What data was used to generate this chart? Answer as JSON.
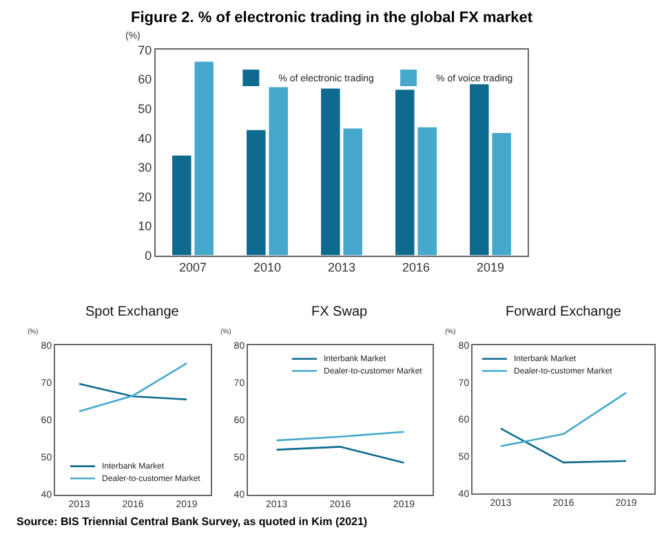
{
  "chart_data": [
    {
      "type": "bar",
      "title": "Figure 2. % of electronic trading in the global FX market",
      "ylabel": "(%)",
      "categories": [
        "2007",
        "2010",
        "2013",
        "2016",
        "2019"
      ],
      "series": [
        {
          "name": "% of electronic trading",
          "color": "#0e6a8e",
          "values": [
            34,
            42.7,
            56.8,
            56.4,
            58.3
          ]
        },
        {
          "name": "% of voice trading",
          "color": "#45a8cc",
          "values": [
            66,
            57.3,
            43.2,
            43.6,
            41.7
          ]
        }
      ],
      "ylim": [
        0,
        70
      ],
      "yticks": [
        0,
        10,
        20,
        30,
        40,
        50,
        60,
        70
      ],
      "grid": false,
      "legend": "top right",
      "annotations": [
        "Source: BIS Triennial Central Bank Survey, as quoted in Kim (2021)"
      ]
    },
    {
      "type": "line",
      "title": "Spot Exchange",
      "ylabel": "(%)",
      "categories": [
        "2013",
        "2016",
        "2019"
      ],
      "series": [
        {
          "name": "Interbank Market",
          "color": "#0e6a8e",
          "values": [
            69.7,
            66.3,
            65.5
          ]
        },
        {
          "name": "Dealer-to-customer Market",
          "color": "#45a8cc",
          "values": [
            62.3,
            66.5,
            75.2
          ]
        }
      ],
      "ylim": [
        40,
        80
      ],
      "yticks": [
        40,
        50,
        60,
        70,
        80
      ],
      "grid": false,
      "legend": "bottom right",
      "marker": "none",
      "line_style": "solid"
    },
    {
      "type": "line",
      "title": "FX Swap",
      "ylabel": "(%)",
      "categories": [
        "2013",
        "2016",
        "2019"
      ],
      "series": [
        {
          "name": "Interbank Market",
          "color": "#0e6a8e",
          "values": [
            52,
            52.8,
            48.5
          ]
        },
        {
          "name": "Dealer-to-customer Market",
          "color": "#45a8cc",
          "values": [
            54.5,
            55.5,
            56.8
          ]
        }
      ],
      "ylim": [
        40,
        80
      ],
      "yticks": [
        40,
        50,
        60,
        70,
        80
      ],
      "grid": false,
      "legend": "top right",
      "marker": "none",
      "line_style": "solid"
    },
    {
      "type": "line",
      "title": "Forward Exchange",
      "ylabel": "(%)",
      "categories": [
        "2013",
        "2016",
        "2019"
      ],
      "series": [
        {
          "name": "Interbank Market",
          "color": "#0e6a8e",
          "values": [
            57.5,
            48.3,
            48.7
          ]
        },
        {
          "name": "Dealer-to-customer Market",
          "color": "#45a8cc",
          "values": [
            52.7,
            56,
            67.2
          ]
        }
      ],
      "ylim": [
        40,
        80
      ],
      "yticks": [
        40,
        50,
        60,
        70,
        80
      ],
      "grid": false,
      "legend": "top left",
      "marker": "none",
      "line_style": "solid"
    }
  ]
}
